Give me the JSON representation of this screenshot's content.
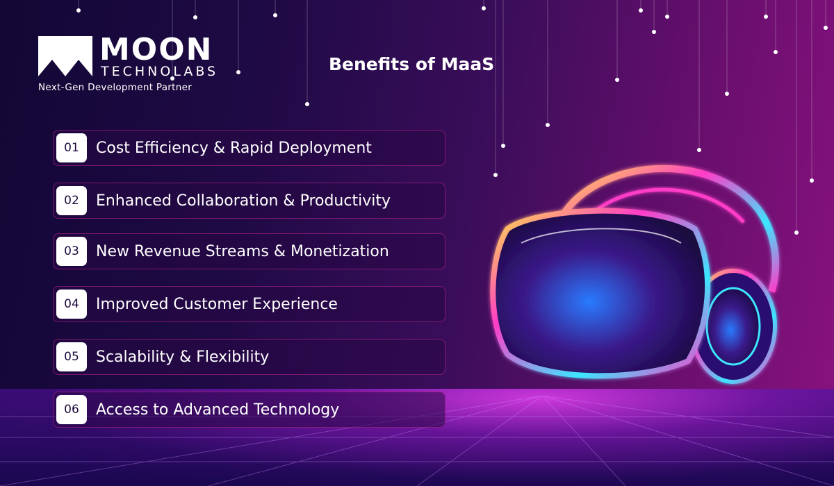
{
  "brand": {
    "name": "MOON",
    "sub": "TECHNOLABS",
    "tagline": "Next-Gen Development Partner"
  },
  "title": "Benefits of MaaS",
  "items": [
    {
      "num": "01",
      "label": "Cost Efficiency & Rapid Deployment"
    },
    {
      "num": "02",
      "label": "Enhanced Collaboration & Productivity"
    },
    {
      "num": "03",
      "label": "New Revenue Streams & Monetization"
    },
    {
      "num": "04",
      "label": "Improved Customer Experience"
    },
    {
      "num": "05",
      "label": "Scalability & Flexibility"
    },
    {
      "num": "06",
      "label": "Access to Advanced Technology"
    }
  ],
  "colors": {
    "bg_left": "#120735",
    "bg_right": "#8a1280",
    "item_border": "#c82896",
    "neon_pink": "#ff3cc8",
    "neon_cyan": "#3ce6ff",
    "neon_yellow": "#ffe14a"
  }
}
